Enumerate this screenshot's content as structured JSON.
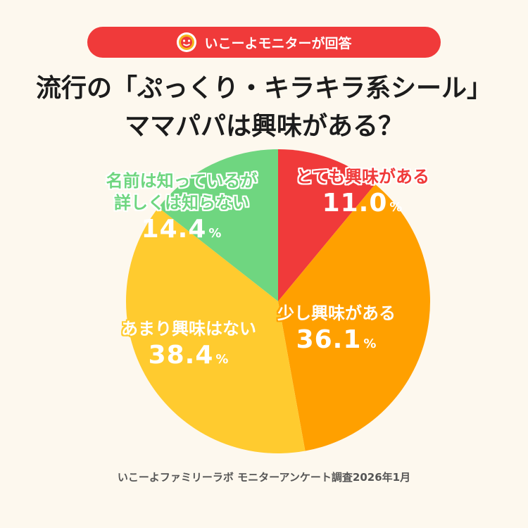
{
  "header": {
    "badge_text": "いこーよモニターが回答",
    "badge_color": "#f03a3a",
    "title_line1": "流行の「ぷっくり・キラキラ系シール」",
    "title_line2": "ママパパは興味がある？"
  },
  "chart_data": {
    "type": "pie",
    "title": "流行の「ぷっくり・キラキラ系シール」ママパパは興味がある？",
    "unit": "%",
    "start_angle_deg": 0,
    "direction": "clockwise",
    "slices": [
      {
        "label": "とても興味がある",
        "value": 11.0,
        "display": "11.0",
        "color": "#f03a3a",
        "text_color": "#f03a3a",
        "value_color": "#ffffff"
      },
      {
        "label": "少し興味がある",
        "value": 36.1,
        "display": "36.1",
        "color": "#ffa000",
        "text_color": "#ffffff",
        "value_color": "#ffffff"
      },
      {
        "label": "あまり興味はない",
        "value": 38.4,
        "display": "38.4",
        "color": "#ffcb2f",
        "text_color": "#ffffff",
        "value_color": "#ffffff"
      },
      {
        "label": "名前は知っているが詳しくは知らない",
        "label_lines": [
          "名前は知っているが",
          "詳しくは知らない"
        ],
        "value": 14.4,
        "display": "14.4",
        "color": "#6fd680",
        "text_color": "#6fd680",
        "value_color": "#ffffff"
      }
    ]
  },
  "footer": {
    "source": "いこーよファミリーラボ モニターアンケート調査2026年1月"
  }
}
